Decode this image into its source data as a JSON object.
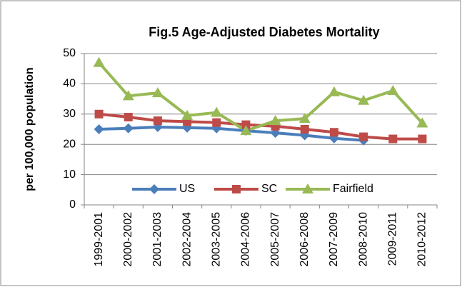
{
  "chart_data": {
    "type": "line",
    "title": "Fig.5  Age-Adjusted Diabetes Mortality",
    "y_label": "per 100,000 population",
    "categories": [
      "1999-2001",
      "2000-2002",
      "2001-2003",
      "2002-2004",
      "2003-2005",
      "2004-2006",
      "2005-2007",
      "2006-2008",
      "2007-2009",
      "2008-2010",
      "2009-2011",
      "2010-2012"
    ],
    "series": [
      {
        "name": "US",
        "color": "#4a7ebb",
        "marker": "diamond",
        "values": [
          25,
          25.3,
          25.7,
          25.5,
          25.3,
          24.5,
          23.8,
          23,
          22,
          21.3,
          null,
          null
        ]
      },
      {
        "name": "SC",
        "color": "#be4b48",
        "marker": "square",
        "values": [
          30,
          29,
          27.8,
          27.5,
          27.2,
          26.5,
          26,
          25,
          24,
          22.5,
          21.8,
          21.8
        ]
      },
      {
        "name": "Fairfield",
        "color": "#98b954",
        "marker": "triangle",
        "values": [
          47,
          36,
          37,
          29.5,
          30.5,
          24.5,
          27.8,
          28.5,
          37.3,
          34.5,
          37.7,
          27
        ]
      }
    ],
    "ylim": [
      0,
      50
    ],
    "yticks": [
      0,
      10,
      20,
      30,
      40,
      50
    ],
    "grid": true,
    "legend": "bottom"
  }
}
